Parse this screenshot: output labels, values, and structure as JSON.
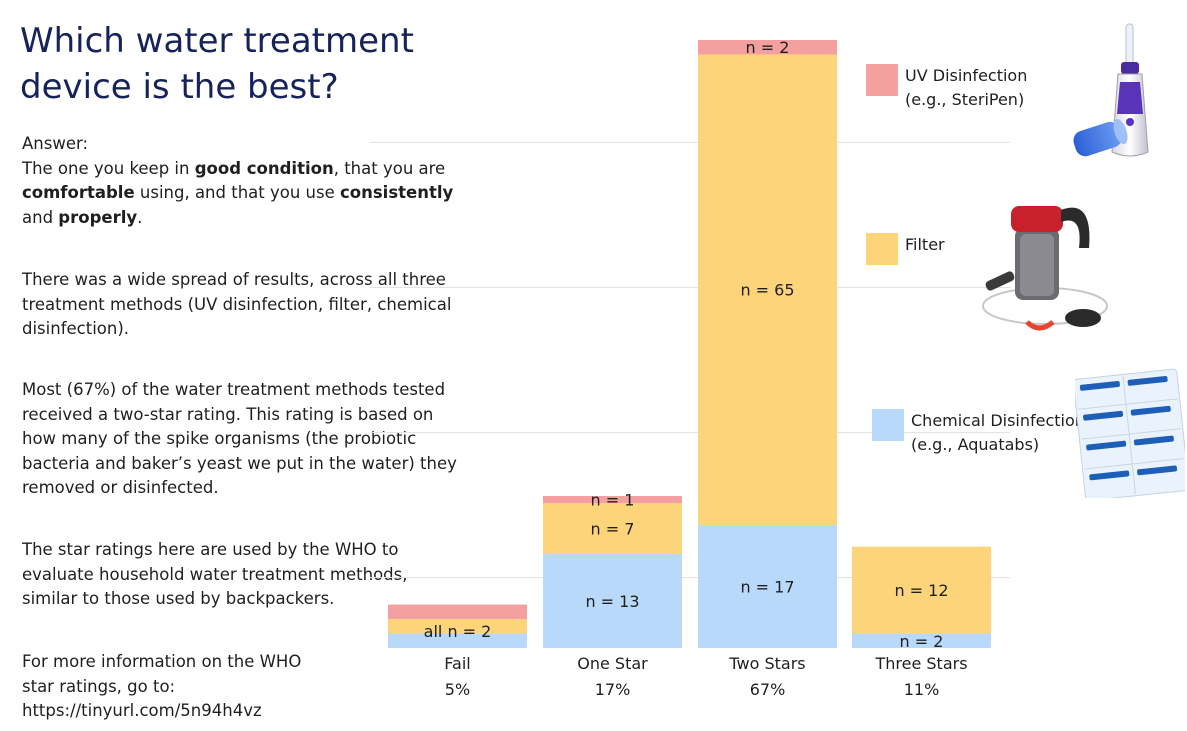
{
  "title": "Which water treatment device is the best?",
  "answer": {
    "heading": "Answer:",
    "t1": "The one you keep in ",
    "b1": "good condition",
    "t2": ", that you are ",
    "b2": "comfortable",
    "t3": " using, and that you use ",
    "b3": "consistently",
    "t4": " and ",
    "b4": "properly",
    "t5": "."
  },
  "paragraphs": {
    "spread": "There was a wide spread of results, across all three treatment methods (UV disinfection, filter, chemical disinfection).",
    "most": "Most (67%) of the water treatment methods tested received a two-star rating. This rating is based on how many of the spike organisms (the probiotic bacteria and baker’s yeast we put in the water) they removed or disinfected.",
    "stars": "The star ratings here are used by the WHO to evaluate household water treatment methods, similar to those used by backpackers.",
    "more_info_1": "For more information on the WHO",
    "more_info_2": "star ratings, go to:",
    "more_info_url": "https://tinyurl.com/5n94h4vz"
  },
  "legend": [
    {
      "name": "UV Disinfection",
      "sub": "(e.g., SteriPen)",
      "color": "#f4a0a0",
      "icon": "steripen-icon"
    },
    {
      "name": "Filter",
      "sub": "",
      "color": "#fcd57a",
      "icon": "water-filter-icon"
    },
    {
      "name": "Chemical Disinfection",
      "sub": "(e.g., Aquatabs)",
      "color": "#b9d9fb",
      "icon": "aquatabs-icon"
    }
  ],
  "chart_data": {
    "type": "bar",
    "stacked": true,
    "categories": [
      "Fail",
      "One Star",
      "Two Stars",
      "Three Stars"
    ],
    "category_percents": [
      "5%",
      "17%",
      "67%",
      "11%"
    ],
    "series": [
      {
        "name": "Chemical Disinfection",
        "color": "#b9d9fb",
        "values": [
          2,
          13,
          17,
          2
        ]
      },
      {
        "name": "Filter",
        "color": "#fcd57a",
        "values": [
          2,
          7,
          65,
          12
        ]
      },
      {
        "name": "UV Disinfection",
        "color": "#f4a0a0",
        "values": [
          2,
          1,
          2,
          0
        ]
      }
    ],
    "segment_labels": [
      [
        "",
        "n = 13",
        "n = 17",
        "n = 2"
      ],
      [
        "",
        "n = 7",
        "n = 65",
        "n = 12"
      ],
      [
        "",
        "n = 1",
        "n = 2",
        ""
      ]
    ],
    "group_labels": [
      "all n = 2",
      "",
      "",
      ""
    ],
    "ylim": [
      0,
      84
    ],
    "grid": true,
    "legend_position": "right"
  }
}
